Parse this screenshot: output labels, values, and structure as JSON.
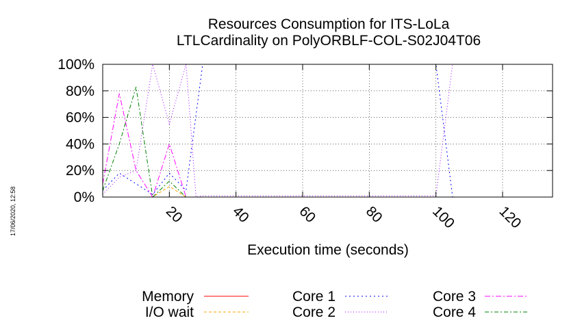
{
  "chart_data": {
    "type": "line",
    "title": "Resources Consumption for ITS-LoLa",
    "subtitle": "LTLCardinality on PolyORBLF-COL-S02J04T06",
    "xlabel": "Execution time (seconds)",
    "ylabel": "",
    "xlim": [
      0,
      135
    ],
    "ylim": [
      0,
      100
    ],
    "x_ticks": [
      20,
      40,
      60,
      80,
      100,
      120
    ],
    "y_ticks": [
      0,
      20,
      40,
      60,
      80,
      100
    ],
    "y_tick_labels": [
      "0%",
      "20%",
      "40%",
      "60%",
      "80%",
      "100%"
    ],
    "grid": true,
    "legend_position": "bottom",
    "timestamp": "17/06/2020, 12:58",
    "series": [
      {
        "name": "Memory",
        "color": "#ff0000",
        "dash": "solid",
        "x": [
          0,
          5,
          10,
          15,
          20,
          25,
          30,
          135
        ],
        "y": [
          0,
          0,
          0,
          0,
          0,
          0,
          0,
          0
        ]
      },
      {
        "name": "I/O wait",
        "color": "#ffa500",
        "dash": "4,3",
        "x": [
          0,
          5,
          10,
          15,
          20,
          25,
          30,
          135
        ],
        "y": [
          0,
          0,
          0,
          0,
          8,
          0,
          0,
          0
        ]
      },
      {
        "name": "Core 1",
        "color": "#0000ff",
        "dash": "2,4",
        "x": [
          0,
          5,
          10,
          15,
          20,
          25,
          30,
          40,
          60,
          80,
          100,
          105,
          135
        ],
        "y": [
          5,
          18,
          10,
          2,
          18,
          5,
          100,
          100,
          100,
          100,
          100,
          0,
          0
        ]
      },
      {
        "name": "Core 2",
        "color": "#a000ff",
        "dash": "1,3",
        "x": [
          0,
          5,
          10,
          15,
          20,
          25,
          28,
          30,
          40,
          60,
          80,
          100,
          105,
          135
        ],
        "y": [
          2,
          15,
          20,
          100,
          55,
          100,
          0,
          1,
          1,
          1,
          1,
          1,
          100,
          100
        ]
      },
      {
        "name": "Core 3",
        "color": "#ff00ff",
        "dash": "8,3,2,3",
        "x": [
          0,
          5,
          10,
          15,
          20,
          25,
          30,
          135
        ],
        "y": [
          10,
          78,
          20,
          0,
          40,
          0,
          0,
          0
        ]
      },
      {
        "name": "Core 4",
        "color": "#008000",
        "dash": "6,3,2,3",
        "x": [
          0,
          5,
          10,
          15,
          20,
          25,
          30,
          135
        ],
        "y": [
          5,
          40,
          83,
          0,
          12,
          0,
          0,
          0
        ]
      }
    ]
  }
}
